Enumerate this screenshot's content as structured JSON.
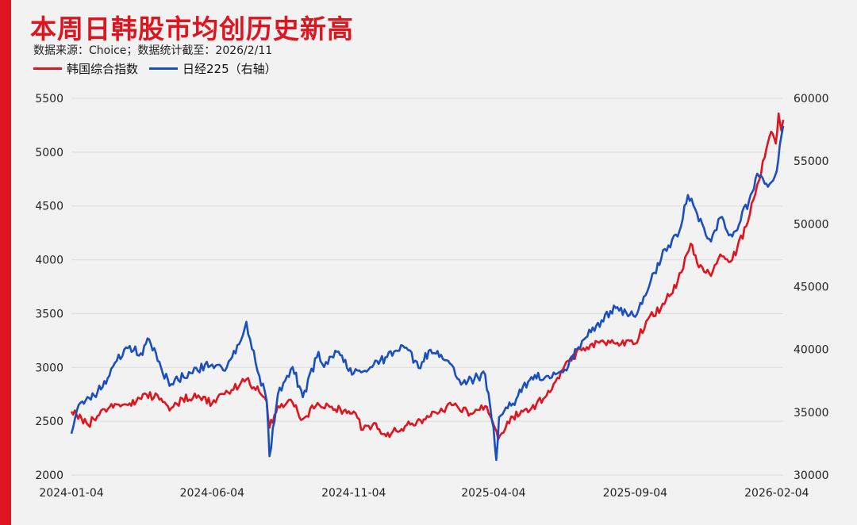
{
  "title": "本周日韩股市均创历史新高",
  "subtitle": "数据来源：Choice；数据统计截至：2026/2/11",
  "colors": {
    "accent": "#e0141e",
    "kospi": "#e0141e",
    "nikkei": "#1a4fbd"
  },
  "chart_data": {
    "type": "line",
    "legend_position": "top-left",
    "grid": true,
    "x_ticks": [
      "2024-01-04",
      "2024-06-04",
      "2024-11-04",
      "2025-04-04",
      "2025-09-04",
      "2026-02-04"
    ],
    "x_range": [
      "2024-01-04",
      "2026-02-11"
    ],
    "y_left": {
      "ticks": [
        "5500",
        "5000",
        "4500",
        "4000",
        "3500",
        "3000",
        "2500",
        "2000"
      ],
      "range": [
        2000,
        5500
      ]
    },
    "y_right": {
      "ticks": [
        "60000",
        "55000",
        "50000",
        "45000",
        "40000",
        "35000",
        "30000"
      ],
      "range": [
        30000,
        60000
      ]
    },
    "series": [
      {
        "name": "韩国综合指数",
        "axis": "left",
        "color": "#e0141e",
        "points": [
          [
            "2024-01-04",
            2590
          ],
          [
            "2024-01-15",
            2525
          ],
          [
            "2024-01-22",
            2465
          ],
          [
            "2024-02-05",
            2600
          ],
          [
            "2024-02-20",
            2660
          ],
          [
            "2024-03-05",
            2650
          ],
          [
            "2024-03-25",
            2750
          ],
          [
            "2024-04-10",
            2710
          ],
          [
            "2024-04-19",
            2600
          ],
          [
            "2024-05-03",
            2710
          ],
          [
            "2024-05-20",
            2740
          ],
          [
            "2024-06-04",
            2665
          ],
          [
            "2024-06-25",
            2790
          ],
          [
            "2024-07-11",
            2890
          ],
          [
            "2024-07-25",
            2770
          ],
          [
            "2024-08-02",
            2680
          ],
          [
            "2024-08-05",
            2440
          ],
          [
            "2024-08-14",
            2640
          ],
          [
            "2024-08-28",
            2700
          ],
          [
            "2024-09-10",
            2520
          ],
          [
            "2024-09-26",
            2670
          ],
          [
            "2024-10-15",
            2610
          ],
          [
            "2024-11-04",
            2590
          ],
          [
            "2024-11-14",
            2420
          ],
          [
            "2024-11-28",
            2480
          ],
          [
            "2024-12-09",
            2360
          ],
          [
            "2024-12-20",
            2410
          ],
          [
            "2025-01-06",
            2480
          ],
          [
            "2025-01-24",
            2540
          ],
          [
            "2025-02-18",
            2650
          ],
          [
            "2025-03-10",
            2570
          ],
          [
            "2025-03-26",
            2640
          ],
          [
            "2025-04-04",
            2470
          ],
          [
            "2025-04-09",
            2330
          ],
          [
            "2025-04-25",
            2540
          ],
          [
            "2025-05-15",
            2620
          ],
          [
            "2025-06-04",
            2770
          ],
          [
            "2025-06-20",
            3020
          ],
          [
            "2025-07-10",
            3180
          ],
          [
            "2025-07-31",
            3250
          ],
          [
            "2025-08-14",
            3220
          ],
          [
            "2025-09-04",
            3220
          ],
          [
            "2025-09-18",
            3450
          ],
          [
            "2025-10-02",
            3550
          ],
          [
            "2025-10-20",
            3800
          ],
          [
            "2025-11-03",
            4150
          ],
          [
            "2025-11-10",
            3970
          ],
          [
            "2025-11-25",
            3850
          ],
          [
            "2025-12-05",
            4050
          ],
          [
            "2025-12-18",
            4000
          ],
          [
            "2026-01-02",
            4310
          ],
          [
            "2026-01-14",
            4700
          ],
          [
            "2026-01-22",
            4950
          ],
          [
            "2026-01-29",
            5190
          ],
          [
            "2026-02-03",
            5080
          ],
          [
            "2026-02-06",
            5360
          ],
          [
            "2026-02-09",
            5200
          ],
          [
            "2026-02-11",
            5300
          ]
        ]
      },
      {
        "name": "日经225（右轴）",
        "axis": "right",
        "color": "#1a4fbd",
        "points": [
          [
            "2024-01-04",
            33300
          ],
          [
            "2024-01-12",
            35600
          ],
          [
            "2024-01-25",
            36000
          ],
          [
            "2024-02-14",
            37900
          ],
          [
            "2024-02-22",
            39100
          ],
          [
            "2024-03-05",
            40100
          ],
          [
            "2024-03-19",
            39700
          ],
          [
            "2024-03-28",
            40800
          ],
          [
            "2024-04-19",
            37100
          ],
          [
            "2024-05-10",
            38200
          ],
          [
            "2024-06-04",
            38800
          ],
          [
            "2024-06-20",
            38600
          ],
          [
            "2024-07-05",
            40700
          ],
          [
            "2024-07-11",
            42200
          ],
          [
            "2024-07-25",
            37900
          ],
          [
            "2024-08-02",
            35900
          ],
          [
            "2024-08-05",
            31500
          ],
          [
            "2024-08-14",
            36400
          ],
          [
            "2024-08-30",
            38600
          ],
          [
            "2024-09-10",
            36200
          ],
          [
            "2024-09-27",
            39800
          ],
          [
            "2024-10-03",
            38600
          ],
          [
            "2024-10-15",
            39900
          ],
          [
            "2024-11-04",
            38100
          ],
          [
            "2024-11-20",
            38400
          ],
          [
            "2024-12-10",
            39400
          ],
          [
            "2024-12-27",
            40300
          ],
          [
            "2025-01-15",
            38500
          ],
          [
            "2025-01-24",
            39900
          ],
          [
            "2025-02-14",
            39100
          ],
          [
            "2025-02-28",
            37200
          ],
          [
            "2025-03-18",
            37800
          ],
          [
            "2025-03-26",
            38000
          ],
          [
            "2025-04-04",
            33800
          ],
          [
            "2025-04-07",
            31200
          ],
          [
            "2025-04-10",
            34600
          ],
          [
            "2025-04-25",
            35700
          ],
          [
            "2025-05-15",
            37800
          ],
          [
            "2025-06-04",
            37700
          ],
          [
            "2025-06-20",
            38400
          ],
          [
            "2025-07-03",
            40000
          ],
          [
            "2025-07-24",
            41900
          ],
          [
            "2025-08-14",
            43300
          ],
          [
            "2025-09-04",
            42600
          ],
          [
            "2025-09-19",
            45000
          ],
          [
            "2025-10-06",
            48000
          ],
          [
            "2025-10-20",
            49000
          ],
          [
            "2025-10-31",
            52300
          ],
          [
            "2025-11-10",
            50800
          ],
          [
            "2025-11-25",
            48600
          ],
          [
            "2025-12-05",
            50500
          ],
          [
            "2025-12-18",
            49000
          ],
          [
            "2026-01-05",
            51800
          ],
          [
            "2026-01-14",
            54000
          ],
          [
            "2026-01-22",
            53200
          ],
          [
            "2026-01-29",
            53300
          ],
          [
            "2026-02-04",
            54200
          ],
          [
            "2026-02-09",
            57000
          ],
          [
            "2026-02-11",
            57800
          ]
        ]
      }
    ]
  }
}
